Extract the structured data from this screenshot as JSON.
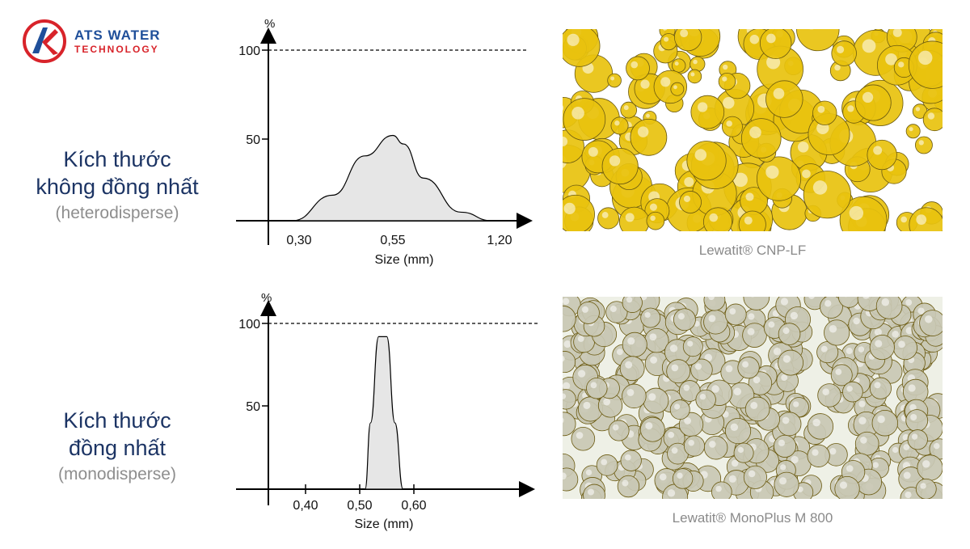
{
  "logo": {
    "line1": "ATS WATER",
    "line2": "TECHNOLOGY",
    "brand_blue": "#1f4f9a",
    "brand_red": "#d8232a"
  },
  "sections": [
    {
      "title_line1": "Kích thước",
      "title_line2": "không đồng nhất",
      "subtitle": "(heterodisperse)",
      "photo_caption": "Lewatit® CNP-LF"
    },
    {
      "title_line1": "Kích thước",
      "title_line2": "đồng nhất",
      "subtitle": "(monodisperse)",
      "photo_caption": "Lewatit® MonoPlus M 800"
    }
  ],
  "colors": {
    "title": "#1c3464",
    "subtitle": "#8e8e8e",
    "fill": "#e6e6e6",
    "bead_yellow": "#e8c20e",
    "bead_clear": "#c9c8b4"
  },
  "chart_data": [
    {
      "type": "area",
      "ylabel": "%",
      "xlabel": "Size (mm)",
      "yticks": [
        "50",
        "100"
      ],
      "xticks": [
        "0,30",
        "0,55",
        "1,20"
      ],
      "reference_line": 100,
      "x": [
        0.3,
        0.4,
        0.48,
        0.55,
        0.62,
        0.75,
        1.0,
        1.2
      ],
      "y": [
        0,
        15,
        38,
        50,
        45,
        25,
        5,
        0
      ],
      "grid": false
    },
    {
      "type": "area",
      "ylabel": "%",
      "xlabel": "Size (mm)",
      "yticks": [
        "50",
        "100"
      ],
      "xticks": [
        "0,40",
        "0,50",
        "0,60"
      ],
      "reference_line": 100,
      "x": [
        0.51,
        0.52,
        0.535,
        0.55,
        0.565,
        0.58
      ],
      "y": [
        0,
        40,
        92,
        92,
        40,
        0
      ],
      "grid": false
    }
  ]
}
